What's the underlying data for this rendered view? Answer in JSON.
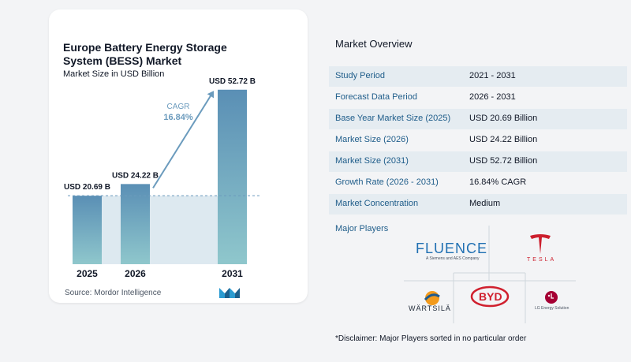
{
  "chart_card": {
    "title": "Europe Battery Energy Storage System (BESS) Market",
    "subtitle": "Market Size in USD Billion",
    "source": "Source:  Mordor Intelligence"
  },
  "chart_data": {
    "type": "bar",
    "title": "Europe Battery Energy Storage System (BESS) Market",
    "subtitle": "Market Size in USD Billion",
    "categories": [
      "2025",
      "2026",
      "2031"
    ],
    "values": [
      20.69,
      24.22,
      52.72
    ],
    "data_labels": [
      "USD 20.69 B",
      "USD 24.22 B",
      "USD 52.72 B"
    ],
    "cagr_label": "CAGR",
    "cagr_value": "16.84%",
    "ylim": [
      0,
      56
    ],
    "colors": {
      "bar_top": "#5a8fb5",
      "bar_bottom": "#8fc7cc",
      "band": "#dde9f0",
      "arrow": "#6b9bbd"
    }
  },
  "overview": {
    "heading": "Market Overview",
    "rows": [
      {
        "key": "Study Period",
        "value": "2021 - 2031"
      },
      {
        "key": "Forecast Data Period",
        "value": "2026 - 2031"
      },
      {
        "key": "Base Year Market Size (2025)",
        "value": "USD 20.69 Billion"
      },
      {
        "key": "Market Size (2026)",
        "value": "USD 24.22 Billion"
      },
      {
        "key": "Market Size (2031)",
        "value": "USD 52.72 Billion"
      },
      {
        "key": "Growth Rate (2026 - 2031)",
        "value": "16.84% CAGR"
      },
      {
        "key": "Market Concentration",
        "value": "Medium"
      }
    ]
  },
  "players": {
    "heading": "Major Players",
    "fluence": "FLUENCE",
    "fluence_tag": "A Siemens and AES Company",
    "tesla": "TESLA",
    "wartsila": "WÄRTSILÄ",
    "byd": "BYD",
    "lg_tag": "LG Energy Solution"
  },
  "disclaimer": "*Disclaimer: Major Players sorted in no particular order"
}
